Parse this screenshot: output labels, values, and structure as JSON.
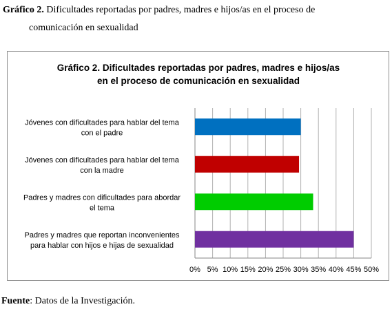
{
  "caption": {
    "label": "Gráfico 2.",
    "line1": "Dificultades reportadas por padres, madres e hijos/as en el proceso de",
    "line2": "comunicación en sexualidad"
  },
  "source": {
    "label": "Fuente",
    "text": ": Datos de la Investigación."
  },
  "chart_data": {
    "type": "bar",
    "orientation": "horizontal",
    "title": [
      "Gráfico 2. Dificultades reportadas por padres, madres e hijos/as",
      "en el proceso de comunicación en sexualidad"
    ],
    "categories": [
      [
        "Jóvenes con dificultades para hablar del tema",
        "con el padre"
      ],
      [
        "Jóvenes con dificultades para hablar del tema",
        "con la madre"
      ],
      [
        "Padres y madres con dificultades para abordar",
        "el tema"
      ],
      [
        "Padres y madres que reportan inconvenientes",
        "para hablar con hijos e hijas de sexualidad"
      ]
    ],
    "values": [
      30,
      29.5,
      33.5,
      45
    ],
    "colors": [
      "#0070c0",
      "#c00000",
      "#00cc00",
      "#7030a0"
    ],
    "xticks": [
      "0%",
      "5%",
      "10%",
      "15%",
      "20%",
      "25%",
      "30%",
      "35%",
      "40%",
      "45%",
      "50%"
    ],
    "xlim": [
      0,
      50
    ],
    "grid": true,
    "legend": "none"
  }
}
